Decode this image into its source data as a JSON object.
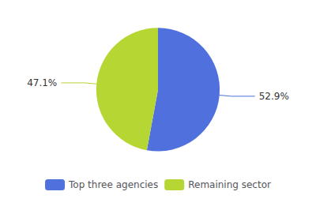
{
  "chart_data": {
    "type": "pie",
    "categories": [
      "Top three agencies",
      "Remaining sector"
    ],
    "values": [
      52.9,
      47.1
    ],
    "value_labels": [
      "52.9%",
      "47.1%"
    ],
    "data_labels": true,
    "legend": "bottom"
  }
}
